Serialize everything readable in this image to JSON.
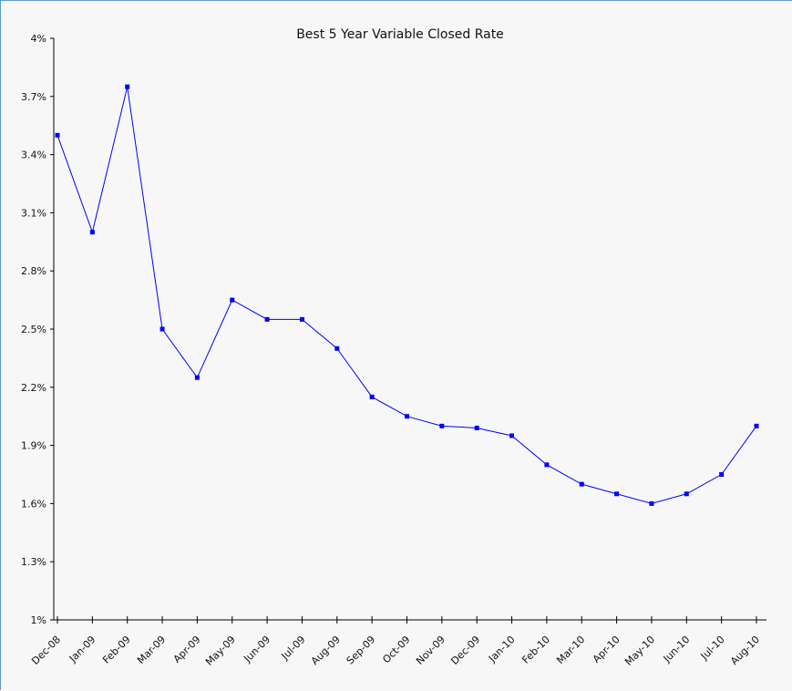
{
  "chart_data": {
    "type": "line",
    "title": "Best 5 Year Variable Closed Rate",
    "xlabel": "",
    "ylabel": "",
    "ylim": [
      1,
      4
    ],
    "yticks": [
      "1%",
      "1.3%",
      "1.6%",
      "1.9%",
      "2.2%",
      "2.5%",
      "2.8%",
      "3.1%",
      "3.4%",
      "3.7%",
      "4%"
    ],
    "ytick_values": [
      1,
      1.3,
      1.6,
      1.9,
      2.2,
      2.5,
      2.8,
      3.1,
      3.4,
      3.7,
      4
    ],
    "categories": [
      "Dec-08",
      "Jan-09",
      "Feb-09",
      "Mar-09",
      "Apr-09",
      "May-09",
      "Jun-09",
      "Jul-09",
      "Aug-09",
      "Sep-09",
      "Oct-09",
      "Nov-09",
      "Dec-09",
      "Jan-10",
      "Feb-10",
      "Mar-10",
      "Apr-10",
      "May-10",
      "Jun-10",
      "Jul-10",
      "Aug-10"
    ],
    "series": [
      {
        "values": [
          3.5,
          3.0,
          3.75,
          2.5,
          2.25,
          2.65,
          2.55,
          2.55,
          2.4,
          2.15,
          2.05,
          2.0,
          1.99,
          1.95,
          1.8,
          1.7,
          1.65,
          1.6,
          1.65,
          1.75,
          2.0
        ],
        "color": "#0000ff"
      }
    ],
    "grid": false,
    "legend": "none"
  }
}
